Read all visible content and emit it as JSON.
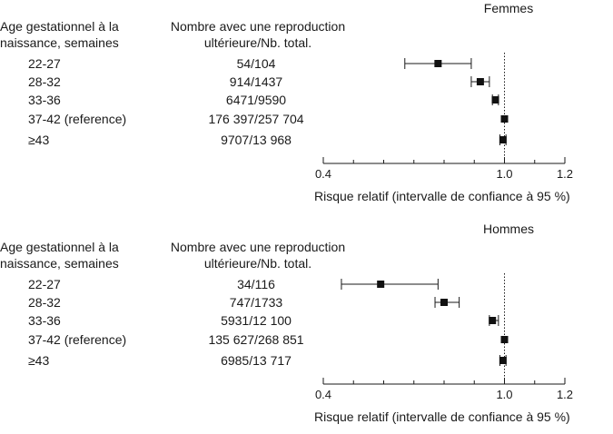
{
  "chart_data": [
    {
      "type": "forest",
      "title": "Femmes",
      "col_headers": {
        "age": [
          "Age gestationnel à la",
          "naissance, semaines"
        ],
        "count": [
          "Nombre avec une reproduction",
          "ultérieure/Nb. total."
        ]
      },
      "xlabel": "Risque relatif (intervalle de confiance à 95 %)",
      "xlim": [
        0.4,
        1.2
      ],
      "xticks": [
        0.4,
        1.0,
        1.2
      ],
      "xtick_labels": [
        "0.4",
        "1.0",
        "1.2"
      ],
      "reference_line": 1.0,
      "rows": [
        {
          "age": "22-27",
          "count": "54/104",
          "rr": 0.78,
          "ci": [
            0.67,
            0.89
          ]
        },
        {
          "age": "28-32",
          "count": "914/1437",
          "rr": 0.92,
          "ci": [
            0.89,
            0.95
          ]
        },
        {
          "age": "33-36",
          "count": "6471/9590",
          "rr": 0.97,
          "ci": [
            0.96,
            0.98
          ]
        },
        {
          "age": "37-42 (reference)",
          "count": "176 397/257 704",
          "rr": 1.0,
          "ci": [
            1.0,
            1.0
          ]
        },
        {
          "age": "≥43",
          "count": "9707/13 968",
          "rr": 0.995,
          "ci": [
            0.985,
            1.005
          ]
        }
      ]
    },
    {
      "type": "forest",
      "title": "Hommes",
      "col_headers": {
        "age": [
          "Age gestationnel à la",
          "naissance, semaines"
        ],
        "count": [
          "Nombre avec une reproduction",
          "ultérieure/Nb. total."
        ]
      },
      "xlabel": "Risque relatif (intervalle de confiance à 95 %)",
      "xlim": [
        0.4,
        1.2
      ],
      "xticks": [
        0.4,
        1.0,
        1.2
      ],
      "xtick_labels": [
        "0.4",
        "1.0",
        "1.2"
      ],
      "reference_line": 1.0,
      "rows": [
        {
          "age": "22-27",
          "count": "34/116",
          "rr": 0.59,
          "ci": [
            0.46,
            0.78
          ]
        },
        {
          "age": "28-32",
          "count": "747/1733",
          "rr": 0.8,
          "ci": [
            0.77,
            0.85
          ]
        },
        {
          "age": "33-36",
          "count": "5931/12 100",
          "rr": 0.96,
          "ci": [
            0.95,
            0.98
          ]
        },
        {
          "age": "37-42 (reference)",
          "count": "135 627/268 851",
          "rr": 1.0,
          "ci": [
            1.0,
            1.0
          ]
        },
        {
          "age": "≥43",
          "count": "6985/13 717",
          "rr": 0.995,
          "ci": [
            0.985,
            1.005
          ]
        }
      ]
    }
  ]
}
